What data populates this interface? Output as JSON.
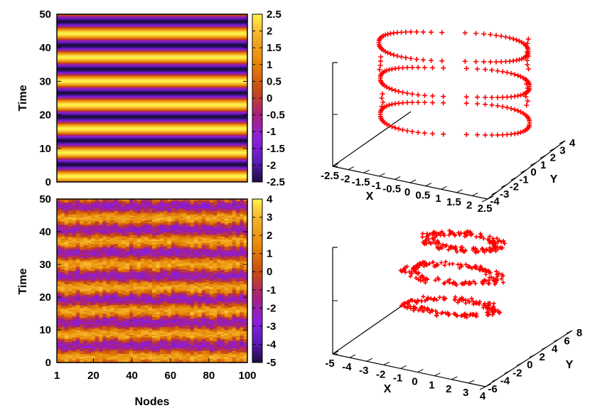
{
  "colors": {
    "marker": "#ff0000",
    "axis": "#000000"
  },
  "chart_data": [
    {
      "type": "heatmap",
      "panel": "top-left",
      "title": "",
      "xlabel": "",
      "ylabel": "Time",
      "xlim": [
        1,
        100
      ],
      "ylim": [
        0,
        50
      ],
      "yticks": [
        "0",
        "10",
        "20",
        "30",
        "40",
        "50"
      ],
      "colorbar": {
        "range": [
          -2.5,
          2.5
        ],
        "ticks": [
          "2.5",
          "2",
          "1.5",
          "1",
          "0.5",
          "0",
          "-0.5",
          "-1",
          "-1.5",
          "-2",
          "-2.5"
        ]
      },
      "pattern": "uniform across nodes; oscillation period of about 7.1 time units, amplitude 2.5"
    },
    {
      "type": "heatmap",
      "panel": "bottom-left",
      "title": "",
      "xlabel": "Nodes",
      "ylabel": "Time",
      "xlim": [
        1,
        100
      ],
      "ylim": [
        0,
        50
      ],
      "xticks": [
        "1",
        "20",
        "40",
        "60",
        "80",
        "100"
      ],
      "yticks": [
        "0",
        "10",
        "20",
        "30",
        "40",
        "50"
      ],
      "colorbar": {
        "range": [
          -5,
          4
        ],
        "ticks": [
          "4",
          "3",
          "2",
          "1",
          "0",
          "-1",
          "-2",
          "-3",
          "-4",
          "-5"
        ]
      },
      "pattern": "noisy oscillation across nodes; period of about 7.1 time units, values mostly -3 to 3"
    },
    {
      "type": "scatter3d",
      "panel": "top-right",
      "xlabel": "X",
      "ylabel": "Y",
      "xticks": [
        "-2.5",
        "-2",
        "-1.5",
        "-1",
        "-0.5",
        "0",
        "0.5",
        "1",
        "1.5",
        "2",
        "2.5"
      ],
      "yticks": [
        "-4",
        "-3",
        "-2",
        "-1",
        "0",
        "1",
        "2",
        "3",
        "4"
      ],
      "xlim": [
        -2.5,
        2.5
      ],
      "ylim": [
        -4,
        4
      ],
      "marker": "+",
      "series_description": "three stacked closed loops (limit cycle) with x amplitude 2.5 and y amplitude 3.5"
    },
    {
      "type": "scatter3d",
      "panel": "bottom-right",
      "xlabel": "X",
      "ylabel": "Y",
      "xticks": [
        "-5",
        "-4",
        "-3",
        "-2",
        "-1",
        "0",
        "1",
        "2",
        "3",
        "4"
      ],
      "yticks": [
        "-6",
        "-4",
        "-2",
        "0",
        "2",
        "4",
        "6",
        "8"
      ],
      "xlim": [
        -5,
        4
      ],
      "ylim": [
        -6,
        8
      ],
      "marker": "+",
      "series_description": "three stacked noisy loop bundles"
    }
  ]
}
